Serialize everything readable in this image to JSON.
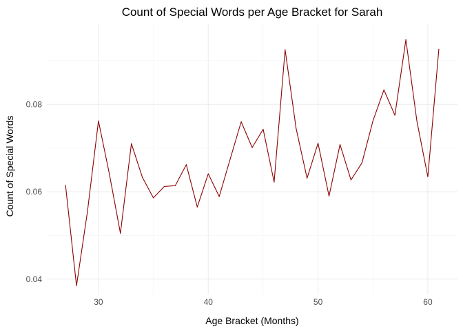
{
  "chart_data": {
    "type": "line",
    "title": "Count of Special Words per Age Bracket for Sarah",
    "xlabel": "Age Bracket (Months)",
    "ylabel": "Count of Special Words",
    "xlim": [
      25.3,
      62.7
    ],
    "ylim": [
      0.0365,
      0.0985
    ],
    "x_ticks": [
      30,
      40,
      50,
      60
    ],
    "x_tick_labels": [
      "30",
      "40",
      "50",
      "60"
    ],
    "y_ticks": [
      0.04,
      0.06,
      0.08
    ],
    "y_tick_labels": [
      "0.04",
      "0.06",
      "0.08"
    ],
    "x_minor": [
      35,
      45,
      55
    ],
    "y_minor": [
      0.05,
      0.07,
      0.09
    ],
    "grid": true,
    "line_color": "#8b0000",
    "series": [
      {
        "x": [
          27,
          28,
          29,
          30,
          31,
          32,
          33,
          34,
          35,
          36,
          37,
          38,
          39,
          40,
          41,
          42,
          43,
          44,
          45,
          46,
          47,
          48,
          49,
          50,
          51,
          52,
          53,
          54,
          55,
          56,
          57,
          58,
          59,
          60,
          61
        ],
        "values": [
          0.0615,
          0.0385,
          0.0555,
          0.0762,
          0.064,
          0.0505,
          0.071,
          0.0633,
          0.0586,
          0.0612,
          0.0614,
          0.0662,
          0.0565,
          0.0641,
          0.0589,
          0.0675,
          0.076,
          0.0701,
          0.0743,
          0.0622,
          0.0925,
          0.0745,
          0.0631,
          0.0711,
          0.059,
          0.0708,
          0.0627,
          0.0666,
          0.0762,
          0.0833,
          0.0775,
          0.0948,
          0.0762,
          0.0634,
          0.0926
        ]
      }
    ]
  }
}
